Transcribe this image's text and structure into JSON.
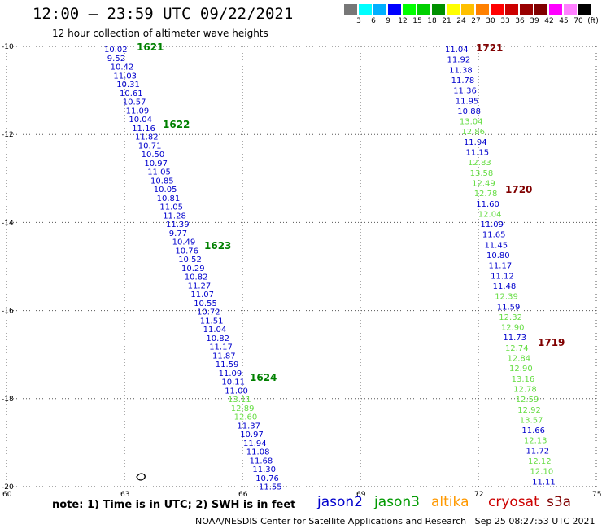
{
  "header": {
    "title": "12:00 – 23:59 UTC 09/22/2021",
    "subtitle": "12 hour collection of altimeter wave heights"
  },
  "colorbar": {
    "colors": [
      "#777777",
      "#00ffff",
      "#00b0ff",
      "#0000ff",
      "#00ff00",
      "#00d000",
      "#009000",
      "#ffff00",
      "#ffc000",
      "#ff8000",
      "#ff0000",
      "#cc0000",
      "#990000",
      "#800000",
      "#ff00ff",
      "#ff80ff",
      "#000000"
    ],
    "labels": [
      "3",
      "6",
      "9",
      "12",
      "15",
      "18",
      "21",
      "24",
      "27",
      "30",
      "33",
      "36",
      "39",
      "42",
      "45",
      "70",
      "(ft)"
    ]
  },
  "axes": {
    "lat_labels": [
      "-10",
      "-12",
      "-14",
      "-16",
      "-18",
      "-20"
    ],
    "lon_labels": [
      "60",
      "63",
      "66",
      "69",
      "72",
      "75"
    ]
  },
  "tracks": {
    "left": {
      "time_labels": [
        {
          "text": "1621",
          "color": "#008000"
        },
        {
          "text": "1622",
          "color": "#008000"
        },
        {
          "text": "1623",
          "color": "#008000"
        },
        {
          "text": "1624",
          "color": "#008000"
        }
      ],
      "values": [
        {
          "v": "10.02",
          "c": "#0000cc"
        },
        {
          "v": "9.52",
          "c": "#0000cc"
        },
        {
          "v": "10.42",
          "c": "#0000cc"
        },
        {
          "v": "11.03",
          "c": "#0000cc"
        },
        {
          "v": "10.31",
          "c": "#0000cc"
        },
        {
          "v": "10.61",
          "c": "#0000cc"
        },
        {
          "v": "10.57",
          "c": "#0000cc"
        },
        {
          "v": "11.09",
          "c": "#0000cc"
        },
        {
          "v": "10.04",
          "c": "#0000cc"
        },
        {
          "v": "11.16",
          "c": "#0000cc"
        },
        {
          "v": "11.82",
          "c": "#0000cc"
        },
        {
          "v": "10.71",
          "c": "#0000cc"
        },
        {
          "v": "10.50",
          "c": "#0000cc"
        },
        {
          "v": "10.97",
          "c": "#0000cc"
        },
        {
          "v": "11.05",
          "c": "#0000cc"
        },
        {
          "v": "10.85",
          "c": "#0000cc"
        },
        {
          "v": "10.05",
          "c": "#0000cc"
        },
        {
          "v": "10.81",
          "c": "#0000cc"
        },
        {
          "v": "11.05",
          "c": "#0000cc"
        },
        {
          "v": "11.28",
          "c": "#0000cc"
        },
        {
          "v": "11.39",
          "c": "#0000cc"
        },
        {
          "v": "9.77",
          "c": "#0000cc"
        },
        {
          "v": "10.49",
          "c": "#0000cc"
        },
        {
          "v": "10.76",
          "c": "#0000cc"
        },
        {
          "v": "10.52",
          "c": "#0000cc"
        },
        {
          "v": "10.29",
          "c": "#0000cc"
        },
        {
          "v": "10.82",
          "c": "#0000cc"
        },
        {
          "v": "11.27",
          "c": "#0000cc"
        },
        {
          "v": "11.07",
          "c": "#0000cc"
        },
        {
          "v": "10.55",
          "c": "#0000cc"
        },
        {
          "v": "10.72",
          "c": "#0000cc"
        },
        {
          "v": "11.51",
          "c": "#0000cc"
        },
        {
          "v": "11.04",
          "c": "#0000cc"
        },
        {
          "v": "10.82",
          "c": "#0000cc"
        },
        {
          "v": "11.17",
          "c": "#0000cc"
        },
        {
          "v": "11.87",
          "c": "#0000cc"
        },
        {
          "v": "11.59",
          "c": "#0000cc"
        },
        {
          "v": "11.09",
          "c": "#0000cc"
        },
        {
          "v": "10.11",
          "c": "#0000cc"
        },
        {
          "v": "11.00",
          "c": "#0000cc"
        },
        {
          "v": "13.11",
          "c": "#66dd44"
        },
        {
          "v": "12.89",
          "c": "#66dd44"
        },
        {
          "v": "12.60",
          "c": "#66dd44"
        },
        {
          "v": "11.37",
          "c": "#0000cc"
        },
        {
          "v": "10.97",
          "c": "#0000cc"
        },
        {
          "v": "11.94",
          "c": "#0000cc"
        },
        {
          "v": "11.08",
          "c": "#0000cc"
        },
        {
          "v": "11.68",
          "c": "#0000cc"
        },
        {
          "v": "11.30",
          "c": "#0000cc"
        },
        {
          "v": "10.76",
          "c": "#0000cc"
        },
        {
          "v": "11.55",
          "c": "#0000cc"
        }
      ]
    },
    "right": {
      "time_labels": [
        {
          "text": "1721",
          "color": "#800000"
        },
        {
          "text": "1720",
          "color": "#800000"
        },
        {
          "text": "1719",
          "color": "#800000"
        }
      ],
      "values": [
        {
          "v": "11.04",
          "c": "#0000cc"
        },
        {
          "v": "11.92",
          "c": "#0000cc"
        },
        {
          "v": "11.38",
          "c": "#0000cc"
        },
        {
          "v": "11.78",
          "c": "#0000cc"
        },
        {
          "v": "11.36",
          "c": "#0000cc"
        },
        {
          "v": "11.95",
          "c": "#0000cc"
        },
        {
          "v": "10.88",
          "c": "#0000cc"
        },
        {
          "v": "13.04",
          "c": "#66dd44"
        },
        {
          "v": "12.86",
          "c": "#66dd44"
        },
        {
          "v": "11.94",
          "c": "#0000cc"
        },
        {
          "v": "11.15",
          "c": "#0000cc"
        },
        {
          "v": "12.83",
          "c": "#66dd44"
        },
        {
          "v": "13.58",
          "c": "#66dd44"
        },
        {
          "v": "12.49",
          "c": "#66dd44"
        },
        {
          "v": "12.78",
          "c": "#66dd44"
        },
        {
          "v": "11.60",
          "c": "#0000cc"
        },
        {
          "v": "12.04",
          "c": "#66dd44"
        },
        {
          "v": "11.09",
          "c": "#0000cc"
        },
        {
          "v": "11.65",
          "c": "#0000cc"
        },
        {
          "v": "11.45",
          "c": "#0000cc"
        },
        {
          "v": "10.80",
          "c": "#0000cc"
        },
        {
          "v": "11.17",
          "c": "#0000cc"
        },
        {
          "v": "11.12",
          "c": "#0000cc"
        },
        {
          "v": "11.48",
          "c": "#0000cc"
        },
        {
          "v": "12.39",
          "c": "#66dd44"
        },
        {
          "v": "11.59",
          "c": "#0000cc"
        },
        {
          "v": "12.32",
          "c": "#66dd44"
        },
        {
          "v": "12.90",
          "c": "#66dd44"
        },
        {
          "v": "11.73",
          "c": "#0000cc"
        },
        {
          "v": "12.74",
          "c": "#66dd44"
        },
        {
          "v": "12.84",
          "c": "#66dd44"
        },
        {
          "v": "12.90",
          "c": "#66dd44"
        },
        {
          "v": "13.16",
          "c": "#66dd44"
        },
        {
          "v": "12.78",
          "c": "#66dd44"
        },
        {
          "v": "12.59",
          "c": "#66dd44"
        },
        {
          "v": "12.92",
          "c": "#66dd44"
        },
        {
          "v": "13.57",
          "c": "#66dd44"
        },
        {
          "v": "11.66",
          "c": "#0000cc"
        },
        {
          "v": "12.13",
          "c": "#66dd44"
        },
        {
          "v": "11.72",
          "c": "#0000cc"
        },
        {
          "v": "12.12",
          "c": "#66dd44"
        },
        {
          "v": "12.10",
          "c": "#66dd44"
        },
        {
          "v": "11.11",
          "c": "#0000cc"
        }
      ]
    }
  },
  "footer": {
    "note": "note: 1) Time is in UTC; 2) SWH is in feet",
    "satellites": [
      {
        "name": "jason2",
        "color": "#0000cc"
      },
      {
        "name": "jason3",
        "color": "#009900"
      },
      {
        "name": "altika",
        "color": "#ff9900"
      },
      {
        "name": "cryosat",
        "color": "#cc0000"
      },
      {
        "name": "s3a",
        "color": "#800000"
      }
    ],
    "credit": "NOAA/NESDIS Center for Satellite Applications and Research   Sep 25 08:27:53 UTC 2021"
  }
}
